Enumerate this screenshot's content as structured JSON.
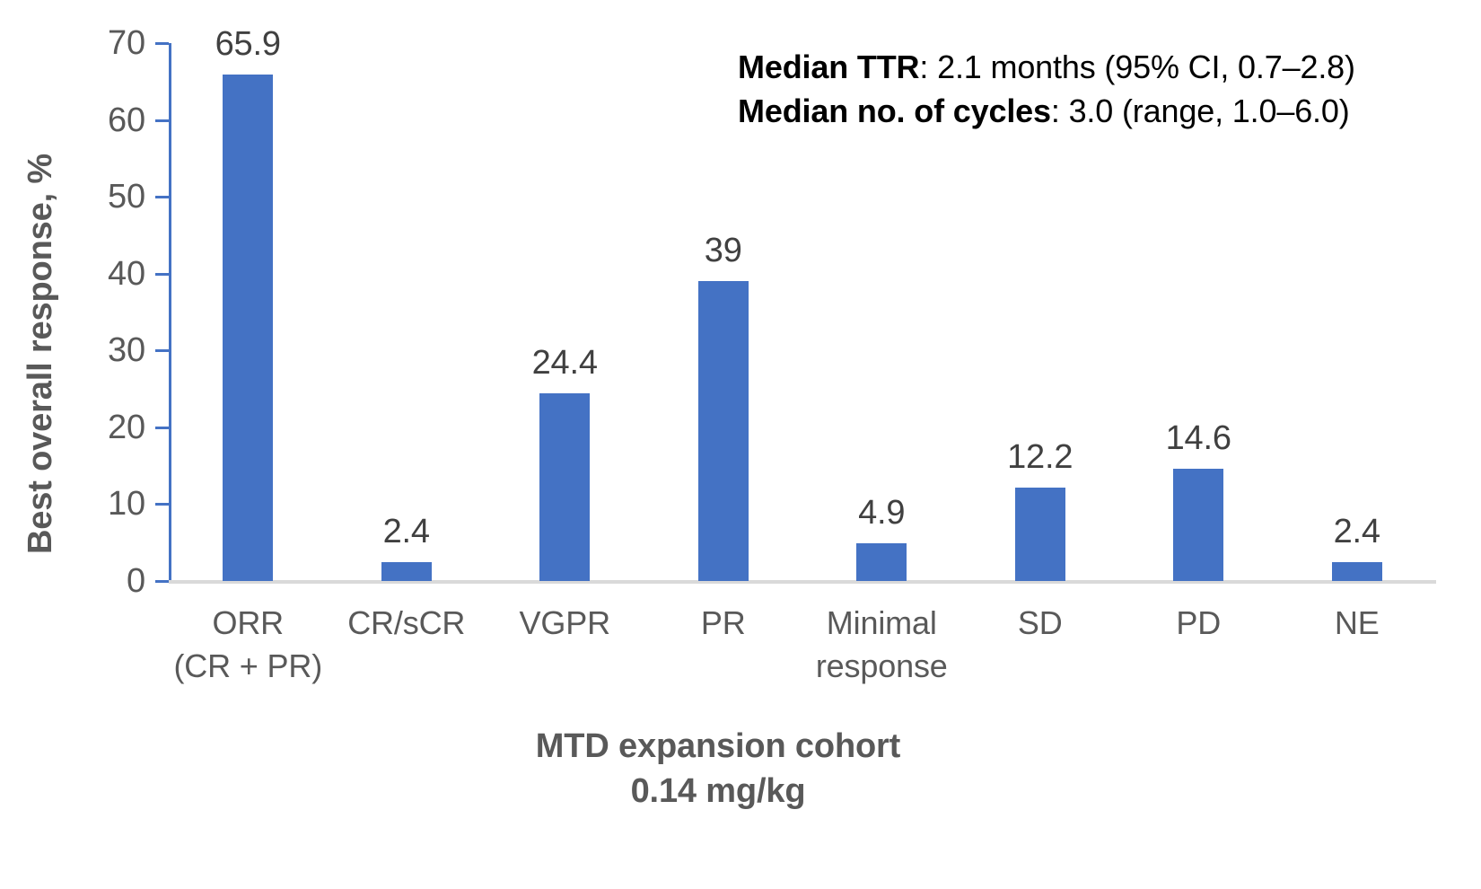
{
  "chart_data": {
    "type": "bar",
    "categories": [
      [
        "ORR",
        "(CR + PR)"
      ],
      [
        "CR/sCR"
      ],
      [
        "VGPR"
      ],
      [
        "PR"
      ],
      [
        "Minimal",
        "response"
      ],
      [
        "SD"
      ],
      [
        "PD"
      ],
      [
        "NE"
      ]
    ],
    "values": [
      65.9,
      2.4,
      24.4,
      39,
      4.9,
      12.2,
      14.6,
      2.4
    ],
    "value_labels": [
      "65.9",
      "2.4",
      "24.4",
      "39",
      "4.9",
      "12.2",
      "14.6",
      "2.4"
    ],
    "ylabel": "Best overall response, %",
    "xlabel_lines": [
      "MTD expansion cohort",
      "0.14 mg/kg"
    ],
    "ylim": [
      0,
      70
    ],
    "yticks": [
      0,
      10,
      20,
      30,
      40,
      50,
      60,
      70
    ],
    "grid": false,
    "legend": "none",
    "colors": {
      "bar": "#4472C4",
      "axis": "#4472C4",
      "baseline": "#D9D9D9",
      "tick_labels": "#595959",
      "value_labels": "#404040",
      "annotation": "#000000"
    },
    "annotations": [
      {
        "bold": "Median TTR",
        "rest": ": 2.1 months (95% CI, 0.7–2.8)"
      },
      {
        "bold": "Median no. of cycles",
        "rest": ": 3.0 (range, 1.0–6.0)"
      }
    ]
  }
}
